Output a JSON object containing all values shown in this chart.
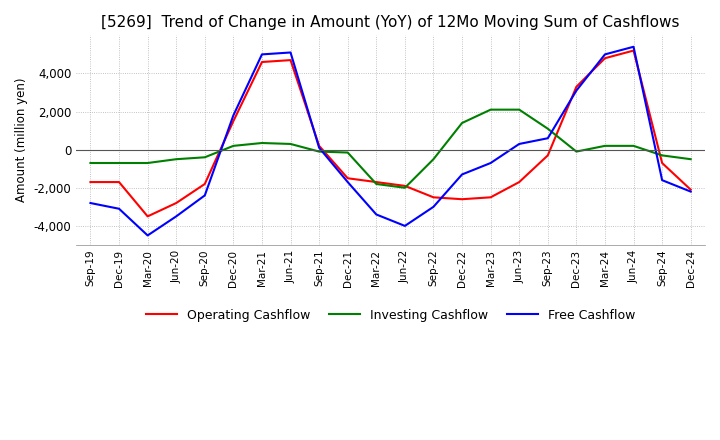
{
  "title": "[5269]  Trend of Change in Amount (YoY) of 12Mo Moving Sum of Cashflows",
  "ylabel": "Amount (million yen)",
  "ylim": [
    -5000,
    6000
  ],
  "yticks": [
    -4000,
    -2000,
    0,
    2000,
    4000
  ],
  "x_labels": [
    "Sep-19",
    "Dec-19",
    "Mar-20",
    "Jun-20",
    "Sep-20",
    "Dec-20",
    "Mar-21",
    "Jun-21",
    "Sep-21",
    "Dec-21",
    "Mar-22",
    "Jun-22",
    "Sep-22",
    "Dec-22",
    "Mar-23",
    "Jun-23",
    "Sep-23",
    "Dec-23",
    "Mar-24",
    "Jun-24",
    "Sep-24",
    "Dec-24"
  ],
  "operating": [
    -1700,
    -1700,
    -3500,
    -2800,
    -1800,
    1500,
    4600,
    4700,
    200,
    -1500,
    -1700,
    -1900,
    -2500,
    -2600,
    -2500,
    -1700,
    -300,
    3300,
    4800,
    5200,
    -700,
    -2100
  ],
  "investing": [
    -700,
    -700,
    -700,
    -500,
    -400,
    200,
    350,
    300,
    -100,
    -150,
    -1800,
    -2000,
    -500,
    1400,
    2100,
    2100,
    1100,
    -100,
    200,
    200,
    -300,
    -500
  ],
  "free": [
    -2800,
    -3100,
    -4500,
    -3500,
    -2400,
    1800,
    5000,
    5100,
    100,
    -1700,
    -3400,
    -4000,
    -3000,
    -1300,
    -700,
    300,
    600,
    3100,
    5000,
    5400,
    -1600,
    -2200
  ],
  "line_colors": {
    "operating": "#ff0000",
    "investing": "#008000",
    "free": "#0000ff"
  },
  "background_color": "#ffffff",
  "grid_color": "#b0b0b0",
  "title_fontsize": 11,
  "legend_labels": [
    "Operating Cashflow",
    "Investing Cashflow",
    "Free Cashflow"
  ]
}
